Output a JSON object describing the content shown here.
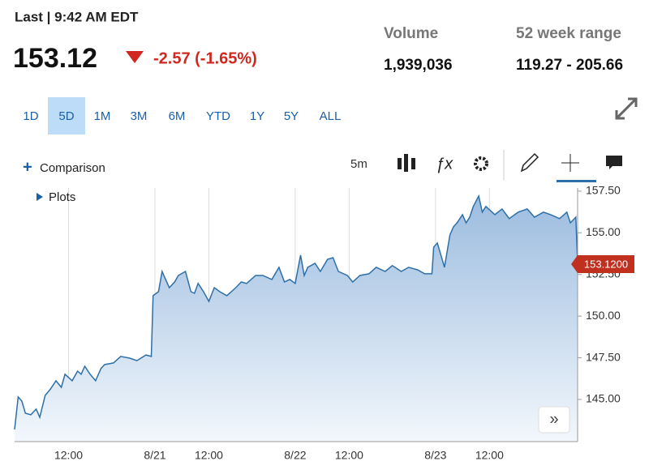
{
  "header": {
    "last_label": "Last | 9:42 AM EDT",
    "price": "153.12",
    "change": "-2.57 (-1.65%)",
    "volume_label": "Volume",
    "volume": "1,939,036",
    "range_label": "52 week range",
    "range": "119.27 - 205.66"
  },
  "range_tabs": [
    "1D",
    "5D",
    "1M",
    "3M",
    "6M",
    "YTD",
    "1Y",
    "5Y",
    "ALL"
  ],
  "toolbar": {
    "comparison": "Comparison",
    "interval": "5m",
    "plots": "Plots"
  },
  "chart_data": {
    "type": "area",
    "color": "#2e6fa7",
    "grid": "x",
    "last_price_label": "153.1200",
    "x": [
      0,
      2,
      4,
      6,
      9,
      12,
      14,
      17,
      20,
      23,
      26,
      28,
      32,
      35,
      37,
      39,
      42,
      45,
      48,
      50,
      55,
      59,
      64,
      68,
      73,
      76,
      77,
      80,
      82,
      84,
      86,
      89,
      91,
      95,
      98,
      100,
      102,
      105,
      108,
      111,
      114,
      118,
      123,
      126,
      129,
      134,
      138,
      143,
      147,
      150,
      153,
      156,
      159,
      161,
      163,
      167,
      170,
      174,
      177,
      180,
      185,
      188,
      192,
      197,
      201,
      206,
      210,
      215,
      219,
      224,
      228,
      232,
      233,
      235,
      239,
      242,
      244,
      246,
      249,
      251,
      253,
      255,
      258,
      260,
      262,
      267,
      271,
      275,
      280,
      285,
      289,
      294,
      298,
      303,
      307,
      309,
      312,
      313
    ],
    "values": [
      143.2,
      145.15,
      144.9,
      144.17,
      144.08,
      144.42,
      143.93,
      145.24,
      145.63,
      146.12,
      145.73,
      146.51,
      146.12,
      146.7,
      146.51,
      146.99,
      146.51,
      146.12,
      146.85,
      147.09,
      147.19,
      147.58,
      147.48,
      147.33,
      147.67,
      147.58,
      151.23,
      151.47,
      152.68,
      152.2,
      151.71,
      152.05,
      152.44,
      152.68,
      151.47,
      151.37,
      151.96,
      151.47,
      150.88,
      151.71,
      151.47,
      151.23,
      151.71,
      152.05,
      151.96,
      152.44,
      152.44,
      152.2,
      152.93,
      152.05,
      152.2,
      151.96,
      153.66,
      152.44,
      152.93,
      153.17,
      152.68,
      153.41,
      153.51,
      152.68,
      152.44,
      152.05,
      152.44,
      152.54,
      152.93,
      152.68,
      153.03,
      152.68,
      152.93,
      152.78,
      152.54,
      152.54,
      154.14,
      154.39,
      152.93,
      154.87,
      155.36,
      155.6,
      156.09,
      155.6,
      155.94,
      156.58,
      157.21,
      156.24,
      156.58,
      156.09,
      156.43,
      155.85,
      156.24,
      156.43,
      155.94,
      156.24,
      156.09,
      155.85,
      156.24,
      155.6,
      155.94,
      153.12
    ],
    "xlim": [
      0,
      313
    ],
    "xticks": [
      {
        "value": 30,
        "label": "12:00"
      },
      {
        "value": 78,
        "label": "8/21"
      },
      {
        "value": 108,
        "label": "12:00"
      },
      {
        "value": 156,
        "label": "8/22"
      },
      {
        "value": 186,
        "label": "12:00"
      },
      {
        "value": 234,
        "label": "8/23"
      },
      {
        "value": 264,
        "label": "12:00"
      }
    ],
    "ylim": [
      142.47,
      157.69
    ],
    "yticks": [
      {
        "value": 145,
        "label": "145.00"
      },
      {
        "value": 147.5,
        "label": "147.50"
      },
      {
        "value": 150,
        "label": "150.00"
      },
      {
        "value": 152.5,
        "label": "152.50"
      },
      {
        "value": 155,
        "label": "155.00"
      },
      {
        "value": 157.5,
        "label": "157.50"
      }
    ]
  }
}
